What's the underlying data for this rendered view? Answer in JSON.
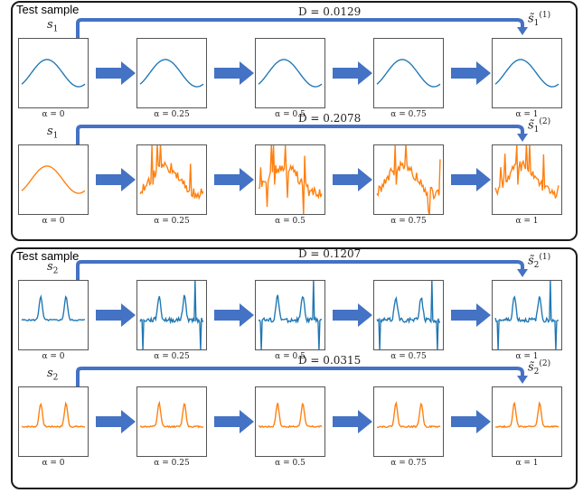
{
  "panels": [
    {
      "title": "Test sample",
      "rows": [
        {
          "color": "#1f77b4",
          "source": {
            "base": "s",
            "sub": "1"
          },
          "target": {
            "base": "s̃",
            "sub": "1",
            "sup": "(1)"
          },
          "distance": "D = 0.0129",
          "alphas": [
            "α = 0",
            "α = 0.25",
            "α = 0.5",
            "α = 0.75",
            "α = 1"
          ],
          "kind": "sine-clean"
        },
        {
          "color": "#ff7f0e",
          "source": {
            "base": "s",
            "sub": "1"
          },
          "target": {
            "base": "s̃",
            "sub": "1",
            "sup": "(2)"
          },
          "distance": "D = 0.2078",
          "alphas": [
            "α = 0",
            "α = 0.25",
            "α = 0.5",
            "α = 0.75",
            "α = 1"
          ],
          "kind": "sine-noisy"
        }
      ]
    },
    {
      "title": "Test sample",
      "rows": [
        {
          "color": "#1f77b4",
          "source": {
            "base": "s",
            "sub": "2"
          },
          "target": {
            "base": "s̃",
            "sub": "2",
            "sup": "(1)"
          },
          "distance": "D = 0.1207",
          "alphas": [
            "α = 0",
            "α = 0.25",
            "α = 0.5",
            "α = 0.75",
            "α = 1"
          ],
          "kind": "peaks-noisy"
        },
        {
          "color": "#ff7f0e",
          "source": {
            "base": "s",
            "sub": "2"
          },
          "target": {
            "base": "s̃",
            "sub": "2",
            "sup": "(2)"
          },
          "distance": "D = 0.0315",
          "alphas": [
            "α = 0",
            "α = 0.25",
            "α = 0.5",
            "α = 0.75",
            "α = 1"
          ],
          "kind": "peaks-clean"
        }
      ]
    }
  ],
  "arrow_color": "#4472c4"
}
